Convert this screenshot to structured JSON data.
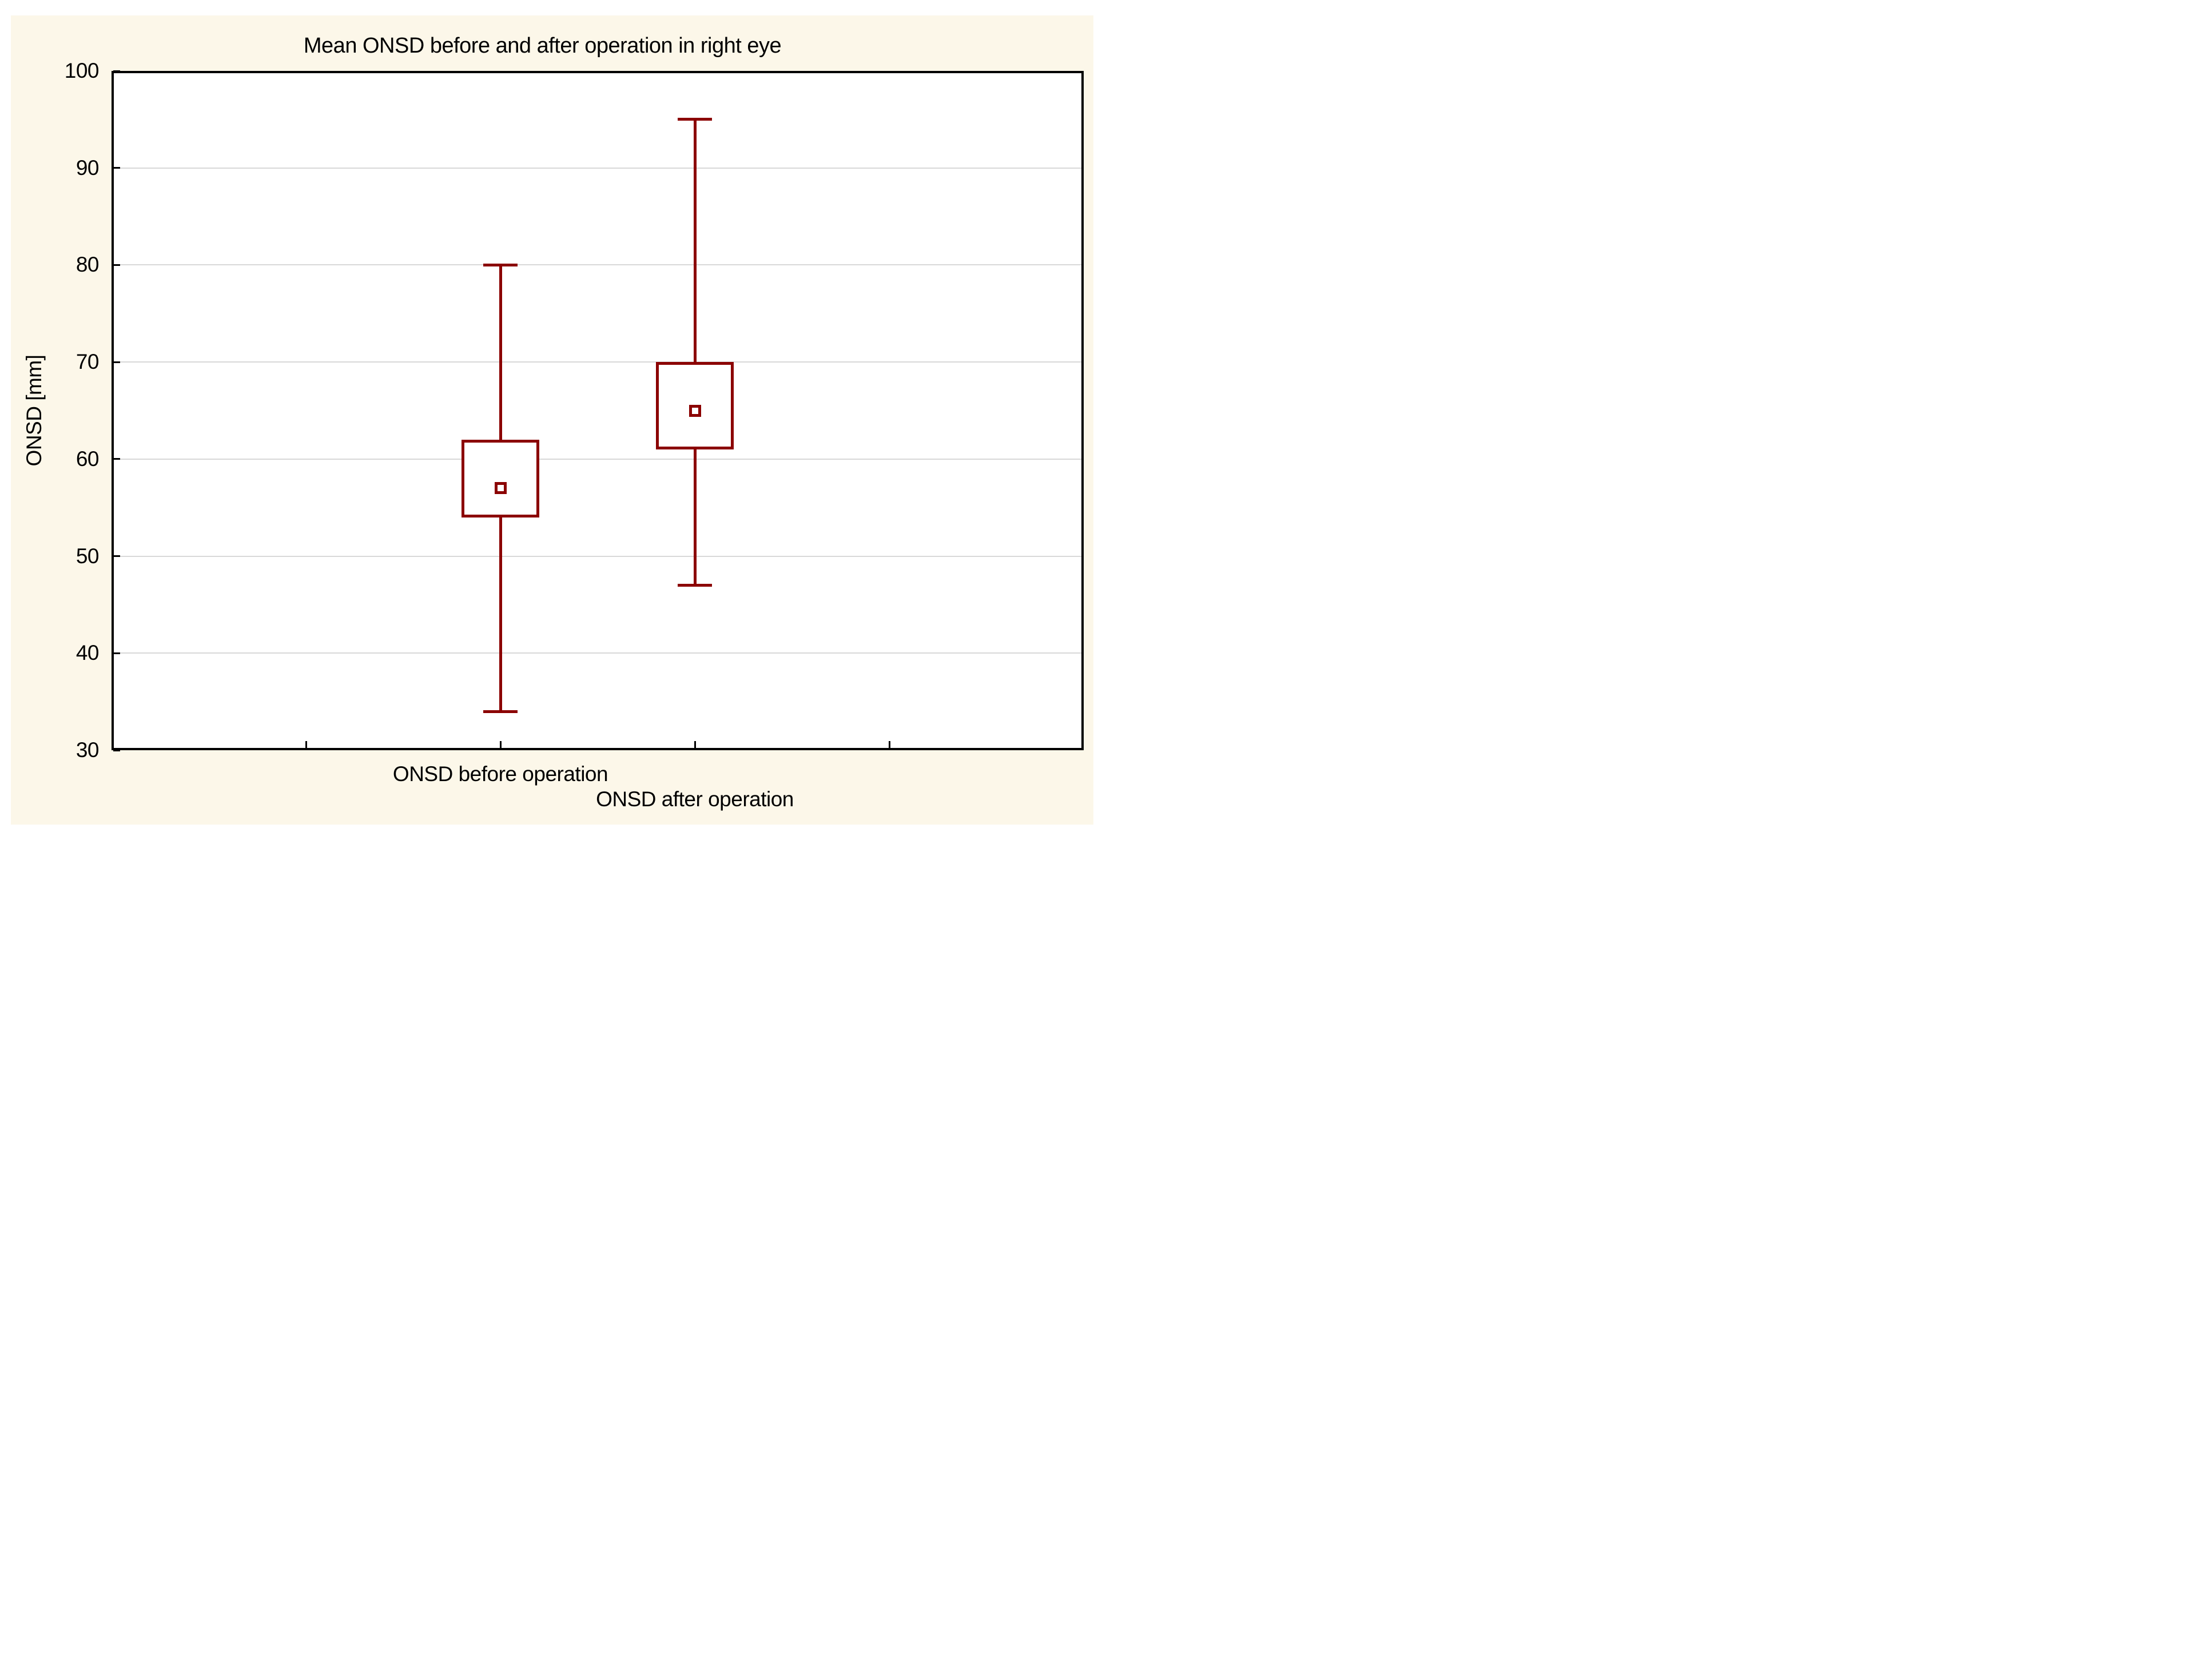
{
  "title": "Mean ONSD before and after operation in right eye",
  "chart_data": {
    "type": "box",
    "title": "Mean ONSD before and after operation in right eye",
    "xlabel": "",
    "ylabel": "ONSD [mm]",
    "ylim": [
      30,
      100
    ],
    "yticks": [
      100,
      90,
      80,
      70,
      60,
      50,
      40,
      30
    ],
    "grid": true,
    "legend_position": "none",
    "categories": [
      "ONSD before operation",
      "ONSD after operation"
    ],
    "category_positions": [
      0.4,
      0.6
    ],
    "x_tick_positions": [
      0.2,
      0.4,
      0.6,
      0.8
    ],
    "marker": "open-square-mean",
    "series": [
      {
        "name": "ONSD before operation",
        "whisker_low": 34,
        "box_low": 54,
        "mean": 57,
        "box_high": 62,
        "whisker_high": 80
      },
      {
        "name": "ONSD after operation",
        "whisker_low": 47,
        "box_low": 61,
        "mean": 65,
        "box_high": 70,
        "whisker_high": 95
      }
    ]
  },
  "colors": {
    "page_background": "#FFFFFF",
    "panel_background": "#FCF7E9",
    "plot_background": "#FFFFFF",
    "box_outline": "#8B0000",
    "gridline": "#D8D8D8",
    "axis": "#000000",
    "text": "#000000"
  }
}
